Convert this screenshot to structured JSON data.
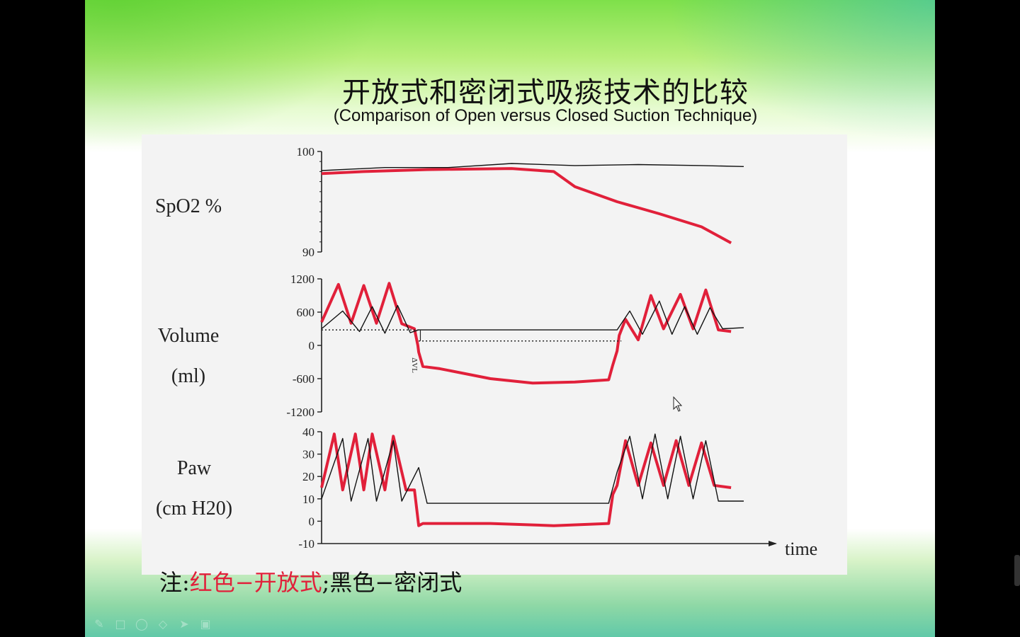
{
  "slide": {
    "title_cn": "开放式和密闭式吸痰技术的比较",
    "title_en": "(Comparison of Open versus Closed Suction Technique)",
    "note_prefix": "注:",
    "note_red": "红色−开放式",
    "note_sep": ";",
    "note_black": "黑色−密闭式"
  },
  "colors": {
    "open_red": "#e1203a",
    "closed_black": "#111111"
  },
  "toolbar_icons": [
    "pen-icon",
    "square-icon",
    "circle-icon",
    "eraser-icon",
    "pointer-icon",
    "screen-icon"
  ],
  "chart_data": [
    {
      "type": "line",
      "ylabel": "SpO2 %",
      "yticks": [
        "100",
        "90"
      ],
      "ylim": [
        90,
        100
      ],
      "x_range": [
        0,
        100
      ],
      "series": [
        {
          "color": "#e1203a",
          "x": [
            0,
            10,
            25,
            45,
            55,
            60,
            70,
            80,
            90,
            97
          ],
          "values": [
            97.8,
            98.0,
            98.2,
            98.3,
            98.0,
            96.5,
            95.0,
            93.8,
            92.5,
            90.9
          ]
        },
        {
          "color": "#111111",
          "x": [
            0,
            15,
            30,
            45,
            60,
            75,
            90,
            100
          ],
          "values": [
            98.1,
            98.4,
            98.4,
            98.8,
            98.6,
            98.7,
            98.6,
            98.5
          ]
        }
      ]
    },
    {
      "type": "line",
      "ylabel": "Volume",
      "yunit": "(ml)",
      "yticks": [
        "1200",
        "600",
        "0",
        "-600",
        "-1200"
      ],
      "ylim": [
        -1200,
        1200
      ],
      "x_range": [
        0,
        100
      ],
      "annotation": "ΔVL",
      "series": [
        {
          "color": "#e1203a",
          "x": [
            0,
            4,
            7,
            10,
            13,
            16,
            19,
            22,
            22.8,
            23,
            24,
            28,
            40,
            50,
            60,
            68,
            69,
            70,
            70.5,
            72,
            75,
            78,
            81,
            85,
            88,
            91,
            94,
            97
          ],
          "values": [
            420,
            1100,
            400,
            1080,
            400,
            1120,
            390,
            300,
            0,
            -120,
            -380,
            -420,
            -600,
            -680,
            -660,
            -620,
            -350,
            -100,
            180,
            470,
            100,
            900,
            300,
            920,
            300,
            1000,
            280,
            250
          ]
        },
        {
          "color": "#111111",
          "x": [
            0,
            5,
            9,
            12,
            15,
            18,
            21,
            23,
            70,
            73,
            76,
            80,
            83,
            86,
            89,
            92,
            95,
            100
          ],
          "values": [
            300,
            620,
            250,
            700,
            220,
            720,
            230,
            280,
            280,
            620,
            200,
            800,
            200,
            700,
            200,
            680,
            300,
            320
          ]
        }
      ]
    },
    {
      "type": "line",
      "ylabel": "Paw",
      "yunit": "(cm H20)",
      "yticks": [
        "40",
        "30",
        "20",
        "10",
        "0",
        "-10"
      ],
      "ylim": [
        -10,
        40
      ],
      "xlabel": "time",
      "x_range": [
        0,
        100
      ],
      "series": [
        {
          "color": "#e1203a",
          "x": [
            0,
            3,
            5,
            8,
            10,
            12,
            15,
            17,
            20,
            21,
            22,
            23,
            24,
            40,
            55,
            68,
            69,
            70,
            72,
            75,
            78,
            81,
            84,
            87,
            90,
            93,
            97
          ],
          "values": [
            15,
            39,
            14,
            39,
            14,
            39,
            14,
            38,
            14,
            14,
            14,
            -2,
            -1,
            -1,
            -2,
            -1,
            12,
            16,
            36,
            16,
            35,
            16,
            36,
            16,
            35,
            16,
            15
          ]
        },
        {
          "color": "#111111",
          "x": [
            0,
            5,
            7,
            11,
            13,
            17,
            19,
            23,
            25,
            68,
            70,
            73,
            76,
            79,
            82,
            85,
            88,
            91,
            94,
            100
          ],
          "values": [
            10,
            37,
            9,
            37,
            9,
            36,
            9,
            24,
            8,
            8,
            22,
            38,
            10,
            39,
            10,
            38,
            10,
            36,
            9,
            9
          ]
        }
      ]
    }
  ]
}
